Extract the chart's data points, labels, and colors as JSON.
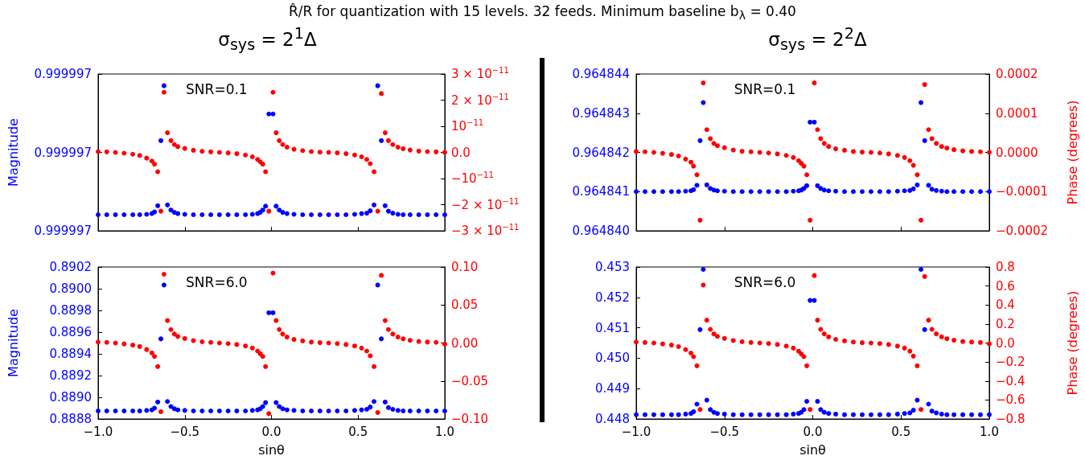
{
  "chart_data": [
    {
      "type": "scatter",
      "title": "R̂/R  for quantization with 15 levels. 32 feeds. Minimum baseline b$_{λ}$ = 0.40",
      "subtitle": "σ$_{sys}$ = 2$^{1}$Δ",
      "ylabel": "Magnitude",
      "annotations": [
        "SNR=0.1"
      ],
      "marker": "circle",
      "tick_labels": "y",
      "x": [
        -1.0,
        -0.95,
        -0.9,
        -0.85,
        -0.8,
        -0.76,
        -0.72,
        -0.69,
        -0.675,
        -0.656,
        -0.638,
        -0.62,
        -0.6,
        -0.58,
        -0.56,
        -0.54,
        -0.5,
        -0.45,
        -0.4,
        -0.35,
        -0.3,
        -0.25,
        -0.2,
        -0.15,
        -0.11,
        -0.08,
        -0.065,
        -0.05,
        -0.034,
        -0.015,
        0.009,
        0.027,
        0.045,
        0.065,
        0.09,
        0.13,
        0.18,
        0.23,
        0.28,
        0.33,
        0.38,
        0.43,
        0.48,
        0.52,
        0.55,
        0.57,
        0.592,
        0.613,
        0.634,
        0.656,
        0.675,
        0.7,
        0.73,
        0.76,
        0.8,
        0.85,
        0.9,
        0.95,
        1.0
      ],
      "xlim": [
        -1,
        1
      ],
      "xticks": [
        {
          "value": -1,
          "label": null
        },
        {
          "value": -0.5,
          "label": null
        },
        {
          "value": 0,
          "label": null
        },
        {
          "value": 0.5,
          "label": null
        },
        {
          "value": 1,
          "label": null
        }
      ],
      "ylim": [
        0.9999968,
        0.9999972
      ],
      "yticks": [
        {
          "value": 0.9999968,
          "label": "0.999997"
        },
        {
          "value": 0.999997,
          "label": "0.999997"
        },
        {
          "value": 0.9999972,
          "label": "0.999997"
        }
      ],
      "y2lim": [
        -3e-11,
        3e-11
      ],
      "y2ticks": [
        {
          "value": -3e-11,
          "label": "−3 × 10$^{−11}$"
        },
        {
          "value": -2e-11,
          "label": "−2 × 10$^{−11}$"
        },
        {
          "value": -1e-11,
          "label": "−10$^{−11}$"
        },
        {
          "value": 0,
          "label": "0.0"
        },
        {
          "value": 1e-11,
          "label": "10$^{−11}$"
        },
        {
          "value": 2e-11,
          "label": "2 × 10$^{−11}$"
        },
        {
          "value": 3e-11,
          "label": "3 × 10$^{−11}$"
        }
      ],
      "series": [
        {
          "color": "#0000ff",
          "values": [
            0.999996841,
            0.999996841,
            0.999996841,
            0.999996841,
            0.999996841,
            0.999996841,
            0.999996842,
            0.999996844,
            0.999996848,
            0.999996864,
            0.99999703,
            0.99999717,
            0.999996866,
            0.999996853,
            0.999996847,
            0.999996844,
            0.999996842,
            0.999996841,
            0.999996841,
            0.999996841,
            0.999996841,
            0.999996841,
            0.999996841,
            0.999996841,
            0.999996842,
            0.999996844,
            0.999996847,
            0.999996853,
            0.999996863,
            0.999997098,
            0.999997098,
            0.999996863,
            0.999996853,
            0.999996847,
            0.999996844,
            0.999996842,
            0.999996841,
            0.999996841,
            0.999996841,
            0.999996841,
            0.999996841,
            0.999996841,
            0.999996842,
            0.999996844,
            0.999996845,
            0.999996851,
            0.999996866,
            0.99999717,
            0.99999703,
            0.999996864,
            0.99999685,
            0.999996845,
            0.999996842,
            0.999996841,
            0.999996841,
            0.999996841,
            0.999996841,
            0.999996841,
            0.999996841
          ]
        },
        {
          "color": "#ff0000",
          "axis": "y2",
          "values": [
            3e-13,
            2e-13,
            0,
            -3e-13,
            -7e-13,
            -1.2e-12,
            -2.2e-12,
            -3.3e-12,
            -4.5e-12,
            -7.4e-12,
            -2.25e-11,
            2.3e-11,
            7.5e-12,
            4.5e-12,
            3e-12,
            2.2e-12,
            1.5e-12,
            8e-13,
            4e-13,
            2e-13,
            0,
            -2e-13,
            -5e-13,
            -1e-12,
            -1.7e-12,
            -2.7e-12,
            -3.6e-12,
            -4.5e-12,
            -7.4e-12,
            -2.25e-11,
            2.3e-11,
            7.5e-12,
            4.5e-12,
            3e-12,
            2e-12,
            1.2e-12,
            7e-13,
            3e-13,
            1e-13,
            0,
            -2e-13,
            -5e-13,
            -1e-12,
            -1.7e-12,
            -2.7e-12,
            -4.3e-12,
            -7.4e-12,
            -2.25e-11,
            2.25e-11,
            7.5e-12,
            4.5e-12,
            3e-12,
            2e-12,
            1.4e-12,
            9e-13,
            5e-13,
            3e-13,
            2e-13,
            0
          ]
        }
      ]
    },
    {
      "type": "scatter",
      "subtitle": "σ$_{sys}$ = 2$^{2}$Δ",
      "y2label": "Phase (degrees)",
      "annotations": [
        "SNR=0.1"
      ],
      "marker": "circle",
      "tick_labels": "y",
      "x": [
        -1.0,
        -0.95,
        -0.9,
        -0.85,
        -0.8,
        -0.76,
        -0.72,
        -0.69,
        -0.675,
        -0.656,
        -0.638,
        -0.62,
        -0.6,
        -0.58,
        -0.56,
        -0.54,
        -0.5,
        -0.45,
        -0.4,
        -0.35,
        -0.3,
        -0.25,
        -0.2,
        -0.15,
        -0.11,
        -0.08,
        -0.065,
        -0.05,
        -0.034,
        -0.015,
        0.009,
        0.027,
        0.045,
        0.065,
        0.09,
        0.13,
        0.18,
        0.23,
        0.28,
        0.33,
        0.38,
        0.43,
        0.48,
        0.52,
        0.55,
        0.57,
        0.592,
        0.613,
        0.634,
        0.656,
        0.675,
        0.7,
        0.73,
        0.76,
        0.8,
        0.85,
        0.9,
        0.95,
        1.0
      ],
      "xlim": [
        -1,
        1
      ],
      "xticks": [
        {
          "value": -1,
          "label": null
        },
        {
          "value": -0.5,
          "label": null
        },
        {
          "value": 0,
          "label": null
        },
        {
          "value": 0.5,
          "label": null
        },
        {
          "value": 1,
          "label": null
        }
      ],
      "ylim": [
        0.96484,
        0.964844
      ],
      "yticks": [
        {
          "value": 0.96484,
          "label": "0.964840"
        },
        {
          "value": 0.964841,
          "label": "0.964841"
        },
        {
          "value": 0.964842,
          "label": "0.964842"
        },
        {
          "value": 0.964843,
          "label": "0.964843"
        },
        {
          "value": 0.964844,
          "label": "0.964844"
        }
      ],
      "y2lim": [
        -0.0002,
        0.0002
      ],
      "y2ticks": [
        {
          "value": -0.0002,
          "label": "−0.0002"
        },
        {
          "value": -0.0001,
          "label": "−0.0001"
        },
        {
          "value": 0,
          "label": "0.0000"
        },
        {
          "value": 0.0001,
          "label": "0.0001"
        },
        {
          "value": 0.0002,
          "label": "0.0002"
        }
      ],
      "series": [
        {
          "color": "#0000ff",
          "values": [
            0.964841,
            0.964841,
            0.964841,
            0.964841,
            0.964841,
            0.964841,
            0.96484101,
            0.96484102,
            0.96484105,
            0.96484116,
            0.9648423,
            0.96484327,
            0.96484117,
            0.96484108,
            0.96484104,
            0.96484102,
            0.96484101,
            0.964841,
            0.964841,
            0.964841,
            0.964841,
            0.964841,
            0.964841,
            0.964841,
            0.96484101,
            0.96484102,
            0.96484104,
            0.96484108,
            0.96484115,
            0.96484277,
            0.96484277,
            0.96484115,
            0.96484108,
            0.96484104,
            0.96484102,
            0.96484101,
            0.964841,
            0.964841,
            0.964841,
            0.964841,
            0.964841,
            0.964841,
            0.96484101,
            0.96484102,
            0.96484103,
            0.96484107,
            0.96484117,
            0.96484327,
            0.9648423,
            0.96484116,
            0.96484106,
            0.96484103,
            0.96484101,
            0.964841,
            0.964841,
            0.964841,
            0.964841,
            0.964841,
            0.964841
          ]
        },
        {
          "color": "#ff0000",
          "axis": "y2",
          "values": [
            2.3e-06,
            1.5e-06,
            0,
            -2.3e-06,
            -5.4e-06,
            -9.2e-06,
            -1.7e-05,
            -2.5e-05,
            -3.5e-05,
            -5.7e-05,
            -0.000173,
            0.000177,
            5.8e-05,
            3.5e-05,
            2.3e-05,
            1.7e-05,
            1.2e-05,
            6e-06,
            3e-06,
            1.5e-06,
            0,
            -1.5e-06,
            -3.9e-06,
            -7.7e-06,
            -1.3e-05,
            -2.1e-05,
            -2.8e-05,
            -3.5e-05,
            -5.7e-05,
            -0.000173,
            0.000177,
            5.8e-05,
            3.5e-05,
            2.3e-05,
            1.5e-05,
            9e-06,
            5.4e-06,
            2.3e-06,
            8e-07,
            0,
            -1.5e-06,
            -3.9e-06,
            -7.7e-06,
            -1.3e-05,
            -2.1e-05,
            -3.3e-05,
            -5.7e-05,
            -0.000173,
            0.000173,
            5.8e-05,
            3.5e-05,
            2.3e-05,
            1.5e-05,
            1.1e-05,
            6.9e-06,
            3.9e-06,
            2.3e-06,
            1.5e-06,
            0
          ]
        }
      ]
    },
    {
      "type": "scatter",
      "ylabel": "Magnitude",
      "xlabel": "sinθ",
      "annotations": [
        "SNR=6.0"
      ],
      "marker": "circle",
      "x": [
        -1.0,
        -0.95,
        -0.9,
        -0.85,
        -0.8,
        -0.76,
        -0.72,
        -0.69,
        -0.675,
        -0.656,
        -0.638,
        -0.62,
        -0.6,
        -0.58,
        -0.56,
        -0.54,
        -0.5,
        -0.45,
        -0.4,
        -0.35,
        -0.3,
        -0.25,
        -0.2,
        -0.15,
        -0.11,
        -0.08,
        -0.065,
        -0.05,
        -0.034,
        -0.015,
        0.009,
        0.027,
        0.045,
        0.065,
        0.09,
        0.13,
        0.18,
        0.23,
        0.28,
        0.33,
        0.38,
        0.43,
        0.48,
        0.52,
        0.55,
        0.57,
        0.592,
        0.613,
        0.634,
        0.656,
        0.675,
        0.7,
        0.73,
        0.76,
        0.8,
        0.85,
        0.9,
        0.95,
        1.0
      ],
      "xlim": [
        -1,
        1
      ],
      "xticks": [
        {
          "value": -1,
          "label": "−1.0"
        },
        {
          "value": -0.5,
          "label": "−0.5"
        },
        {
          "value": 0,
          "label": "0.0"
        },
        {
          "value": 0.5,
          "label": "0.5"
        },
        {
          "value": 1,
          "label": "1.0"
        }
      ],
      "ylim": [
        0.8888,
        0.8902
      ],
      "yticks": [
        {
          "value": 0.8888,
          "label": "0.8888"
        },
        {
          "value": 0.889,
          "label": "0.8890"
        },
        {
          "value": 0.8892,
          "label": "0.8892"
        },
        {
          "value": 0.8894,
          "label": "0.8894"
        },
        {
          "value": 0.8896,
          "label": "0.8896"
        },
        {
          "value": 0.8898,
          "label": "0.8898"
        },
        {
          "value": 0.89,
          "label": "0.8900"
        },
        {
          "value": 0.8902,
          "label": "0.8902"
        }
      ],
      "y2lim": [
        -0.1,
        0.1
      ],
      "y2ticks": [
        {
          "value": -0.1,
          "label": "−0.10"
        },
        {
          "value": -0.05,
          "label": "−0.05"
        },
        {
          "value": 0,
          "label": "0.00"
        },
        {
          "value": 0.05,
          "label": "0.05"
        },
        {
          "value": 0.1,
          "label": "0.10"
        }
      ],
      "series": [
        {
          "color": "#0000ff",
          "values": [
            0.888874,
            0.888874,
            0.888874,
            0.888874,
            0.888874,
            0.888874,
            0.888879,
            0.888884,
            0.8889,
            0.888956,
            0.889538,
            0.890034,
            0.888961,
            0.888915,
            0.888894,
            0.888884,
            0.888879,
            0.888874,
            0.888874,
            0.888874,
            0.888874,
            0.888874,
            0.888874,
            0.888874,
            0.888879,
            0.888884,
            0.888894,
            0.888915,
            0.888951,
            0.889778,
            0.889778,
            0.888951,
            0.888915,
            0.888894,
            0.888884,
            0.888879,
            0.888874,
            0.888874,
            0.888874,
            0.888874,
            0.888874,
            0.888874,
            0.888879,
            0.888884,
            0.888889,
            0.88891,
            0.888961,
            0.890034,
            0.889538,
            0.888956,
            0.888905,
            0.888889,
            0.888879,
            0.888874,
            0.888874,
            0.888874,
            0.888874,
            0.888874,
            0.888874
          ]
        },
        {
          "color": "#ff0000",
          "axis": "y2",
          "values": [
            0.0012,
            0.0008,
            0,
            -0.0012,
            -0.0028,
            -0.0047,
            -0.0086,
            -0.013,
            -0.0177,
            -0.031,
            -0.0904,
            0.0905,
            0.0295,
            0.0177,
            0.0118,
            0.0086,
            0.0059,
            0.0031,
            0.0016,
            0.0008,
            0,
            -0.0008,
            -0.002,
            -0.0039,
            -0.0067,
            -0.0106,
            -0.0141,
            -0.0177,
            -0.031,
            -0.093,
            0.092,
            0.0295,
            0.0177,
            0.0118,
            0.0079,
            0.0047,
            0.0028,
            0.0012,
            0.0004,
            0,
            -0.0008,
            -0.002,
            -0.0039,
            -0.0067,
            -0.0106,
            -0.0169,
            -0.031,
            -0.0915,
            0.089,
            0.0295,
            0.0177,
            0.0118,
            0.0079,
            0.0055,
            0.0035,
            0.002,
            0.0012,
            0.0008,
            -0.0015
          ]
        }
      ]
    },
    {
      "type": "scatter",
      "xlabel": "sinθ",
      "y2label": "Phase (degrees)",
      "annotations": [
        "SNR=6.0"
      ],
      "marker": "circle",
      "x": [
        -1.0,
        -0.95,
        -0.9,
        -0.85,
        -0.8,
        -0.76,
        -0.72,
        -0.69,
        -0.675,
        -0.656,
        -0.638,
        -0.62,
        -0.6,
        -0.58,
        -0.56,
        -0.54,
        -0.5,
        -0.45,
        -0.4,
        -0.35,
        -0.3,
        -0.25,
        -0.2,
        -0.15,
        -0.11,
        -0.08,
        -0.065,
        -0.05,
        -0.034,
        -0.015,
        0.009,
        0.027,
        0.045,
        0.065,
        0.09,
        0.13,
        0.18,
        0.23,
        0.28,
        0.33,
        0.38,
        0.43,
        0.48,
        0.52,
        0.55,
        0.57,
        0.592,
        0.613,
        0.634,
        0.656,
        0.675,
        0.7,
        0.73,
        0.76,
        0.8,
        0.85,
        0.9,
        0.95,
        1.0
      ],
      "xlim": [
        -1,
        1
      ],
      "xticks": [
        {
          "value": -1,
          "label": "−1.0"
        },
        {
          "value": -0.5,
          "label": "−0.5"
        },
        {
          "value": 0,
          "label": "0.0"
        },
        {
          "value": 0.5,
          "label": "0.5"
        },
        {
          "value": 1,
          "label": "1.0"
        }
      ],
      "ylim": [
        0.448,
        0.453
      ],
      "yticks": [
        {
          "value": 0.448,
          "label": "0.448"
        },
        {
          "value": 0.449,
          "label": "0.449"
        },
        {
          "value": 0.45,
          "label": "0.450"
        },
        {
          "value": 0.451,
          "label": "0.451"
        },
        {
          "value": 0.452,
          "label": "0.452"
        },
        {
          "value": 0.453,
          "label": "0.453"
        }
      ],
      "y2lim": [
        -0.8,
        0.8
      ],
      "y2ticks": [
        {
          "value": -0.8,
          "label": "−0.8"
        },
        {
          "value": -0.6,
          "label": "−0.6"
        },
        {
          "value": -0.4,
          "label": "−0.4"
        },
        {
          "value": -0.2,
          "label": "−0.2"
        },
        {
          "value": 0,
          "label": "0.0"
        },
        {
          "value": 0.2,
          "label": "0.2"
        },
        {
          "value": 0.4,
          "label": "0.4"
        },
        {
          "value": 0.6,
          "label": "0.6"
        },
        {
          "value": 0.8,
          "label": "0.8"
        }
      ],
      "series": [
        {
          "color": "#0000ff",
          "values": [
            0.44814,
            0.44814,
            0.44814,
            0.44814,
            0.44814,
            0.44814,
            0.44816,
            0.44818,
            0.44824,
            0.44849,
            0.45094,
            0.45292,
            0.44862,
            0.44831,
            0.44822,
            0.44818,
            0.44816,
            0.44814,
            0.44814,
            0.44814,
            0.44814,
            0.44814,
            0.44814,
            0.44814,
            0.44816,
            0.44818,
            0.44822,
            0.44831,
            0.44858,
            0.4519,
            0.4519,
            0.44858,
            0.44831,
            0.44822,
            0.44818,
            0.44816,
            0.44814,
            0.44814,
            0.44814,
            0.44814,
            0.44814,
            0.44814,
            0.44816,
            0.44818,
            0.4482,
            0.44829,
            0.44862,
            0.45292,
            0.45094,
            0.44849,
            0.44826,
            0.4482,
            0.44816,
            0.44814,
            0.44814,
            0.44814,
            0.44814,
            0.44814,
            0.44814
          ]
        },
        {
          "color": "#ff0000",
          "axis": "y2",
          "values": [
            0.01,
            0.006,
            0,
            -0.01,
            -0.022,
            -0.038,
            -0.07,
            -0.106,
            -0.144,
            -0.24,
            -0.7,
            0.61,
            0.24,
            0.144,
            0.096,
            0.07,
            0.048,
            0.026,
            0.013,
            0.006,
            0,
            -0.006,
            -0.016,
            -0.032,
            -0.054,
            -0.086,
            -0.115,
            -0.144,
            -0.24,
            -0.7,
            0.71,
            0.24,
            0.144,
            0.096,
            0.064,
            0.038,
            0.022,
            0.01,
            0.003,
            0,
            -0.006,
            -0.016,
            -0.032,
            -0.054,
            -0.086,
            -0.138,
            -0.24,
            -0.7,
            0.7,
            0.24,
            0.144,
            0.096,
            0.064,
            0.045,
            0.029,
            0.016,
            0.01,
            0.006,
            -0.01
          ]
        }
      ]
    }
  ]
}
